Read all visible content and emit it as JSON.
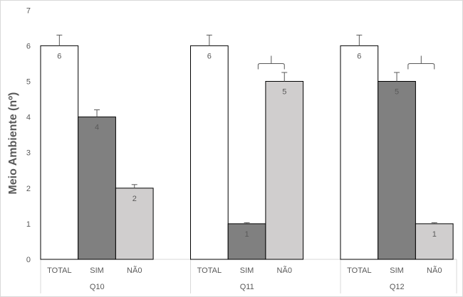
{
  "chart_data": {
    "type": "bar",
    "title": "",
    "ylabel": "Meio Ambiente (nº)",
    "xlabel": "",
    "ylim": [
      0,
      7
    ],
    "yticks": [
      0,
      1,
      2,
      3,
      4,
      5,
      6,
      7
    ],
    "grid": false,
    "legend": "none",
    "groups": [
      {
        "name": "Q10",
        "categories": [
          "TOTAL",
          "SIM",
          "NÃ0"
        ],
        "values": [
          6,
          4,
          2
        ],
        "errors": [
          0.3,
          0.2,
          0.1
        ],
        "bracket": false
      },
      {
        "name": "Q11",
        "categories": [
          "TOTAL",
          "SIM",
          "NÃ0"
        ],
        "values": [
          6,
          1,
          5
        ],
        "errors": [
          0.3,
          0.03,
          0.25
        ],
        "bracket": true
      },
      {
        "name": "Q12",
        "categories": [
          "TOTAL",
          "SIM",
          "NÃ0"
        ],
        "values": [
          6,
          5,
          1
        ],
        "errors": [
          0.3,
          0.25,
          0.03
        ],
        "bracket": true
      }
    ],
    "colors": {
      "TOTAL": "#ffffff",
      "SIM": "#808080",
      "NÃ0": "#d0cece"
    }
  }
}
